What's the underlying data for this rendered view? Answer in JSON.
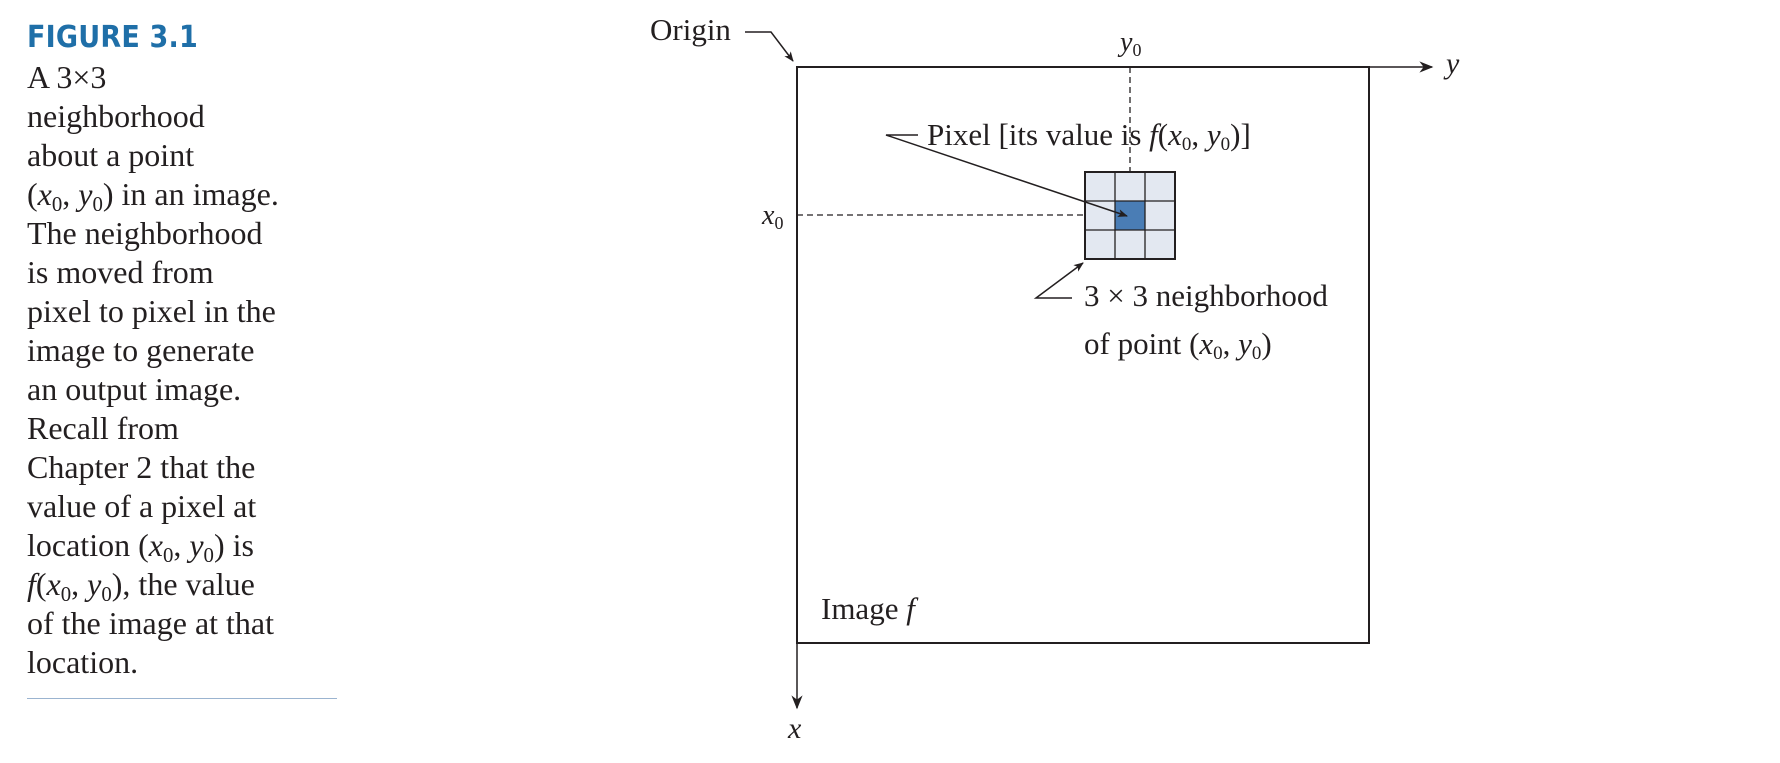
{
  "caption": {
    "figure_label": "FIGURE 3.1",
    "lines": [
      [
        "A 3",
        "×",
        "3"
      ],
      [
        "neighborhood"
      ],
      [
        "about a point"
      ],
      [
        "in an image."
      ],
      [
        "The neighborhood"
      ],
      [
        "is moved from"
      ],
      [
        "pixel to pixel in the"
      ],
      [
        "image to generate"
      ],
      [
        "an output image."
      ],
      [
        "Recall from"
      ],
      [
        "Chapter 2 that the"
      ],
      [
        "value of a pixel at"
      ],
      [
        "location",
        "is"
      ],
      [
        "the value"
      ],
      [
        "of the image at that"
      ],
      [
        "location."
      ]
    ]
  },
  "diagram": {
    "origin_label": "Origin",
    "y_axis": "y",
    "x_axis": "x",
    "y0": "y",
    "x0": "x",
    "sub0": "0",
    "pixel_label_prefix": "Pixel [its value is ",
    "f": "f",
    "neighborhood_line1": "3 × 3 neighborhood",
    "neighborhood_line2": "of point ",
    "image_label": "Image ",
    "image_name": "f",
    "colors": {
      "caption_heading": "#1f6fa8",
      "center_pixel": "#4a7db5",
      "neighbor_pixels": "#e3e8f1",
      "lines": "#231f20",
      "rule": "#9bb4d0"
    }
  }
}
